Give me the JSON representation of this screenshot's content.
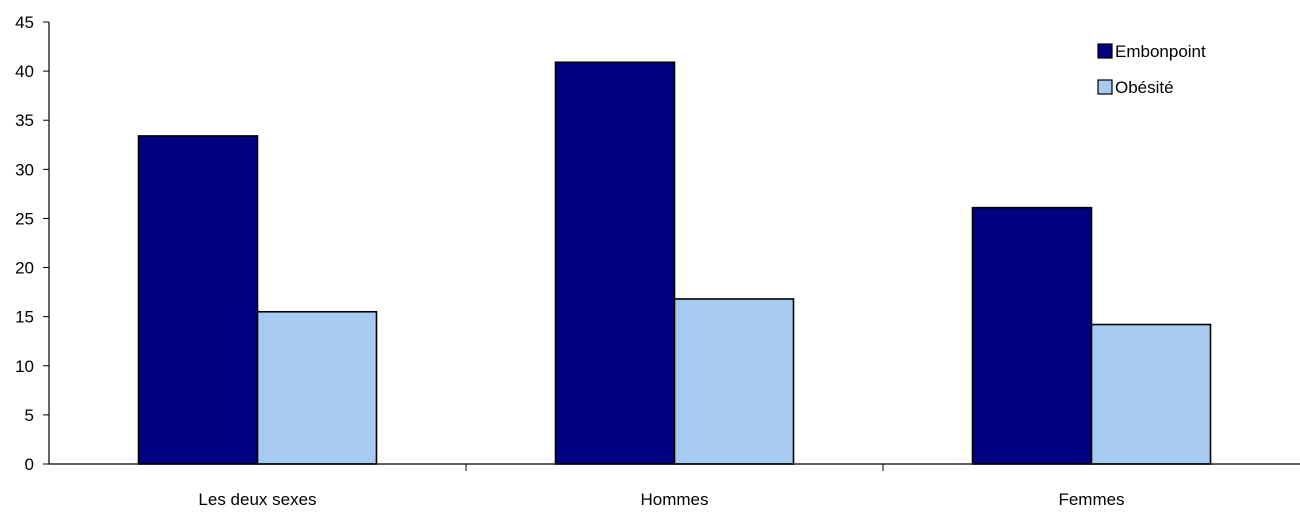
{
  "chart_data": {
    "type": "bar",
    "title": "",
    "xlabel": "",
    "ylabel": "",
    "categories": [
      "Les deux sexes",
      "Hommes",
      "Femmes"
    ],
    "series": [
      {
        "name": "Embonpoint",
        "values": [
          33.4,
          40.9,
          26.1
        ],
        "color": "#000080"
      },
      {
        "name": "Obésité",
        "values": [
          15.5,
          16.8,
          14.2
        ],
        "color": "#a6caf0"
      }
    ],
    "ylim": [
      0,
      45
    ],
    "yticks": [
      0,
      5,
      10,
      15,
      20,
      25,
      30,
      35,
      40,
      45
    ],
    "grid": false,
    "legend": "top-right"
  }
}
